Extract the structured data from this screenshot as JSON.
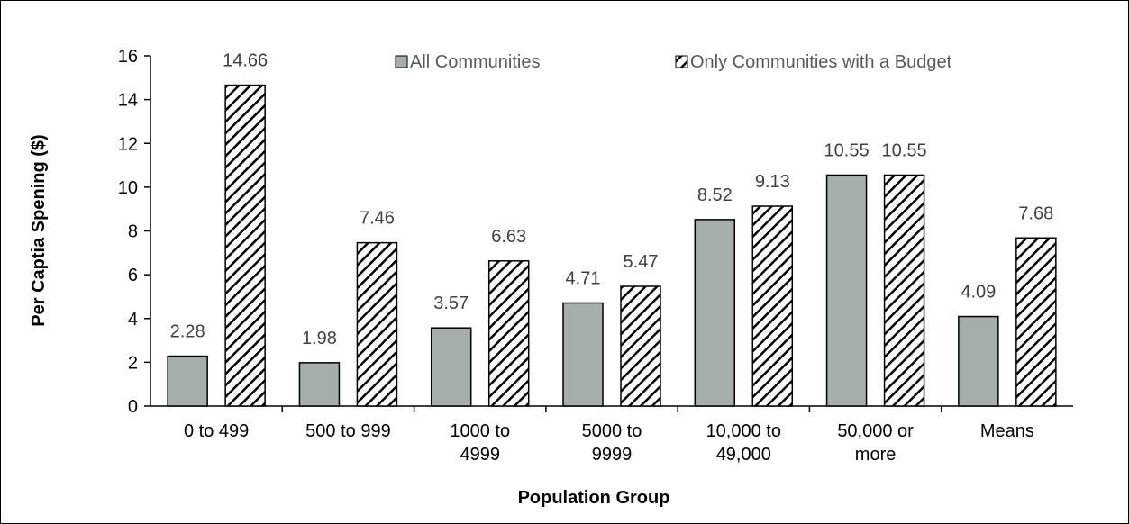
{
  "chart_data": {
    "type": "bar",
    "title": "",
    "xlabel": "Population Group",
    "ylabel": "Per Captia Spening ($)",
    "ylim": [
      0,
      16
    ],
    "yticks": [
      0,
      2,
      4,
      6,
      8,
      10,
      12,
      14,
      16
    ],
    "grid": false,
    "legend_position": "top",
    "categories": [
      [
        "0 to 499"
      ],
      [
        "500 to 999"
      ],
      [
        "1000 to",
        "4999"
      ],
      [
        "5000 to",
        "9999"
      ],
      [
        "10,000 to",
        "49,000"
      ],
      [
        "50,000 or",
        "more"
      ],
      [
        "Means"
      ]
    ],
    "series": [
      {
        "name": "All Communities",
        "values": [
          2.28,
          1.98,
          3.57,
          4.71,
          8.52,
          10.55,
          4.09
        ],
        "labels": [
          "2.28",
          "1.98",
          "3.57",
          "4.71",
          "8.52",
          "10.55",
          "4.09"
        ],
        "fill": "#a5aeab",
        "pattern": "solid"
      },
      {
        "name": "Only Communities with a Budget",
        "values": [
          14.66,
          7.46,
          6.63,
          5.47,
          9.13,
          10.55,
          7.68
        ],
        "labels": [
          "14.66",
          "7.46",
          "6.63",
          "5.47",
          "9.13",
          "10.55",
          "7.68"
        ],
        "fill": "#ffffff",
        "pattern": "diagonal-hatch"
      }
    ],
    "colors": {
      "axis": "#000000",
      "label": "#404040",
      "legend_text": "#595959"
    }
  }
}
